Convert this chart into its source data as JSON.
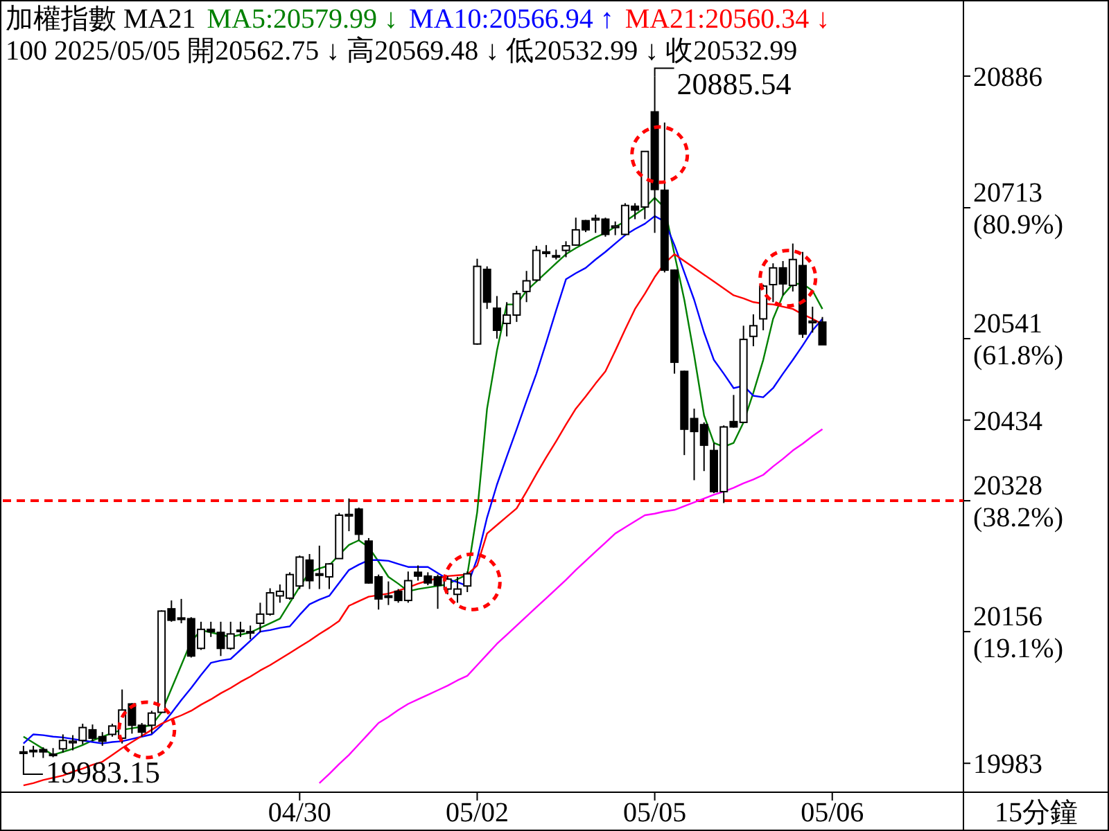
{
  "chart_data": {
    "type": "candlestick",
    "title": "加權指數 MA21",
    "subtitle": "100 2025/05/05 開20562.75 ↓ 高20569.48 ↓ 低20532.99 ↓ 收20532.99",
    "legend": "top",
    "xlabel": "15分鐘",
    "categories": [
      null,
      null,
      null,
      null,
      null,
      null,
      null,
      null,
      null,
      null,
      null,
      null,
      null,
      null,
      null,
      null,
      null,
      null,
      null,
      null,
      null,
      null,
      null,
      null,
      null,
      null,
      null,
      null,
      "04/30",
      null,
      null,
      null,
      null,
      null,
      null,
      null,
      null,
      null,
      null,
      null,
      null,
      null,
      null,
      null,
      null,
      null,
      "05/02",
      null,
      null,
      null,
      null,
      null,
      null,
      null,
      null,
      null,
      null,
      null,
      null,
      null,
      null,
      null,
      null,
      null,
      "05/05",
      null,
      null,
      null,
      null,
      null,
      null,
      null,
      null,
      null,
      null,
      null,
      null,
      null,
      null,
      null,
      null,
      null,
      "05/06"
    ],
    "ohlc": [
      [
        19998,
        20006,
        19983.15,
        19996
      ],
      [
        20000,
        20006,
        19991,
        19999
      ],
      [
        20001,
        20004,
        19990,
        19998
      ],
      [
        19995,
        20003,
        19991,
        19994
      ],
      [
        20002,
        20021,
        19997,
        20013
      ],
      [
        20010,
        20020,
        20000,
        20012
      ],
      [
        20013,
        20035,
        20008,
        20030
      ],
      [
        20027,
        20034,
        20012,
        20016
      ],
      [
        20018,
        20024,
        20006,
        20012
      ],
      [
        20021,
        20035,
        20018,
        20032
      ],
      [
        20016,
        20080,
        20009,
        20053
      ],
      [
        20061,
        20062,
        20022,
        20033
      ],
      [
        20033,
        20036,
        20018,
        20024
      ],
      [
        20033,
        20052,
        20022,
        20049
      ],
      [
        20050,
        20184,
        20049,
        20183
      ],
      [
        20186,
        20197,
        20169,
        20171
      ],
      [
        20174,
        20199,
        20167,
        20172
      ],
      [
        20173,
        20175,
        20122,
        20124
      ],
      [
        20134,
        20169,
        20132,
        20159
      ],
      [
        20159,
        20169,
        20149,
        20156
      ],
      [
        20155,
        20169,
        20124,
        20134
      ],
      [
        20134,
        20169,
        20132,
        20153
      ],
      [
        20158,
        20169,
        20149,
        20157
      ],
      [
        20155,
        20164,
        20146,
        20156
      ],
      [
        20167,
        20194,
        20155,
        20179
      ],
      [
        20179,
        20213,
        20177,
        20207
      ],
      [
        20203,
        20218,
        20194,
        20209
      ],
      [
        20200,
        20234,
        20198,
        20231
      ],
      [
        20216,
        20256,
        20212,
        20254
      ],
      [
        20250,
        20258,
        20212,
        20223
      ],
      [
        20232,
        20269,
        20212,
        20230
      ],
      [
        20228,
        20246,
        20212,
        20245
      ],
      [
        20252,
        20312,
        20252,
        20309
      ],
      [
        20308,
        20331,
        20288,
        20310
      ],
      [
        20317,
        20319,
        20276,
        20284
      ],
      [
        20275,
        20279,
        20219,
        20220
      ],
      [
        20228,
        20231,
        20185,
        20199
      ],
      [
        20203,
        20222,
        20191,
        20201
      ],
      [
        20209,
        20212,
        20194,
        20197
      ],
      [
        20197,
        20235,
        20194,
        20223
      ],
      [
        20234,
        20243,
        20223,
        20229
      ],
      [
        20229,
        20234,
        20217,
        20220
      ],
      [
        20228,
        20231,
        20186,
        20217
      ],
      [
        20212,
        20229,
        20205,
        20225
      ],
      [
        20205,
        20228,
        20194,
        20212
      ],
      [
        20216,
        20235,
        20208,
        20232
      ],
      [
        20534,
        20646,
        20533,
        20636
      ],
      [
        20632,
        20636,
        20580,
        20589
      ],
      [
        20581,
        20597,
        20541,
        20552
      ],
      [
        20561,
        20589,
        20544,
        20572
      ],
      [
        20572,
        20604,
        20563,
        20600
      ],
      [
        20603,
        20630,
        20589,
        20617
      ],
      [
        20618,
        20663,
        20616,
        20657
      ],
      [
        20655,
        20664,
        20648,
        20653
      ],
      [
        20650,
        20658,
        20645,
        20649
      ],
      [
        20657,
        20669,
        20648,
        20663
      ],
      [
        20664,
        20700,
        20663,
        20684
      ],
      [
        20696,
        20697,
        20681,
        20684
      ],
      [
        20697,
        20704,
        20680,
        20699
      ],
      [
        20698,
        20700,
        20675,
        20678
      ],
      [
        20687,
        20695,
        20677,
        20689
      ],
      [
        20678,
        20719,
        20677,
        20716
      ],
      [
        20715,
        20719,
        20698,
        20710
      ],
      [
        20714,
        20787,
        20698,
        20787
      ],
      [
        20839,
        20885.54,
        20680,
        20737
      ],
      [
        20736,
        20825,
        20628,
        20631
      ],
      [
        20631,
        20632,
        20495,
        20510
      ],
      [
        20498,
        20499,
        20388,
        20422
      ],
      [
        20436,
        20449,
        20355,
        20419
      ],
      [
        20428,
        20431,
        20367,
        20401
      ],
      [
        20394,
        20404,
        20338,
        20340
      ],
      [
        20340,
        20427,
        20325,
        20425
      ],
      [
        20432,
        20467,
        20424,
        20425
      ],
      [
        20431,
        20558,
        20430,
        20540
      ],
      [
        20544,
        20573,
        20531,
        20558
      ],
      [
        20567,
        20612,
        20552,
        20610
      ],
      [
        20612,
        20640,
        20589,
        20634
      ],
      [
        20634,
        20643,
        20598,
        20613
      ],
      [
        20611,
        20666,
        20603,
        20645
      ],
      [
        20637,
        20655,
        20542,
        20547
      ],
      [
        20562,
        20583,
        20549,
        20564
      ],
      [
        20562.75,
        20569.48,
        20532.99,
        20532.99
      ],
      null
    ],
    "series": [
      {
        "type": "line",
        "name": "MA5:20579.99 ↓",
        "color": "#008000",
        "values": [
          20018,
          20010,
          20002,
          19994,
          19998,
          20002,
          20007,
          20013,
          20018,
          20023,
          20027,
          20029,
          20031,
          20033,
          20050,
          20081,
          20112,
          20143,
          20158,
          20155,
          20152,
          20149,
          20152,
          20155,
          20161,
          20167,
          20173,
          20194,
          20215,
          20234,
          20239,
          20243,
          20257,
          20270,
          20276,
          20267,
          20248,
          20228,
          20219,
          20209,
          20212,
          20214,
          20216,
          20218,
          20225,
          20231,
          20313,
          20449,
          20525,
          20586,
          20586,
          20604,
          20616,
          20628,
          20640,
          20652,
          20660,
          20667,
          20674,
          20680,
          20688,
          20695,
          20704,
          20713,
          20726,
          20713,
          20652,
          20592,
          20519,
          20440,
          20404,
          20399,
          20404,
          20431,
          20470,
          20513,
          20567,
          20598,
          20613,
          20613,
          20604,
          20580,
          null
        ]
      },
      {
        "type": "line",
        "name": "MA10:20566.94 ↑",
        "color": "#0000ff",
        "values": [
          20009,
          20021,
          20020,
          20018,
          20017,
          20015,
          20013,
          20011,
          20009,
          20011,
          20012,
          20015,
          20018,
          20021,
          20033,
          20049,
          20066,
          20082,
          20099,
          20115,
          20118,
          20120,
          20132,
          20144,
          20156,
          20158,
          20161,
          20163,
          20178,
          20192,
          20198,
          20203,
          20220,
          20237,
          20244,
          20250,
          20250,
          20249,
          20245,
          20241,
          20241,
          20241,
          20233,
          20225,
          20221,
          20216,
          20252,
          20306,
          20349,
          20386,
          20422,
          20459,
          20495,
          20536,
          20578,
          20619,
          20627,
          20634,
          20645,
          20655,
          20666,
          20677,
          20685,
          20692,
          20702,
          20695,
          20664,
          20628,
          20592,
          20549,
          20513,
          20495,
          20476,
          20479,
          20466,
          20464,
          20476,
          20495,
          20513,
          20532,
          20552,
          20567,
          null
        ]
      },
      {
        "type": "line",
        "name": "MA21:20560.34 ↓",
        "color": "#ff0000",
        "values": [
          19954,
          19957,
          19961,
          19964,
          19967,
          19972,
          19976,
          19981,
          19985,
          19994,
          20003,
          20011,
          20019,
          20027,
          20035,
          20041,
          20046,
          20052,
          20060,
          20067,
          20075,
          20082,
          20090,
          20097,
          20105,
          20112,
          20120,
          20128,
          20136,
          20144,
          20153,
          20161,
          20170,
          20190,
          20196,
          20202,
          20204,
          20206,
          20210,
          20214,
          20219,
          20223,
          20226,
          20229,
          20230,
          20231,
          20243,
          20285,
          20296,
          20307,
          20318,
          20340,
          20363,
          20385,
          20406,
          20428,
          20449,
          20465,
          20482,
          20498,
          20525,
          20553,
          20580,
          20600,
          20622,
          20640,
          20652,
          20643,
          20634,
          20625,
          20616,
          20607,
          20598,
          20594,
          20589,
          20587,
          20586,
          20583,
          20580,
          20573,
          20567,
          20560,
          null
        ]
      },
      {
        "type": "line",
        "color": "#ff00ff",
        "values": [
          null,
          null,
          null,
          null,
          null,
          null,
          null,
          null,
          null,
          null,
          null,
          null,
          null,
          null,
          null,
          null,
          null,
          null,
          null,
          null,
          null,
          null,
          null,
          null,
          null,
          null,
          null,
          null,
          null,
          null,
          19957,
          19969,
          19982,
          19994,
          20008,
          20022,
          20036,
          20044,
          20053,
          20061,
          20067,
          20073,
          20079,
          20085,
          20092,
          20098,
          20112,
          20126,
          20140,
          20152,
          20164,
          20176,
          20188,
          20200,
          20212,
          20224,
          20237,
          20249,
          20261,
          20273,
          20285,
          20293,
          20301,
          20309,
          20311,
          20314,
          20316,
          20321,
          20326,
          20331,
          20336,
          20340,
          20345,
          20351,
          20356,
          20362,
          20373,
          20383,
          20394,
          20403,
          20413,
          20422,
          null
        ]
      }
    ],
    "ylim": [
      19945,
      20986
    ],
    "yticks": [
      20886,
      {
        "value": 20713,
        "label": "20713 (80.9%)"
      },
      {
        "value": 20541,
        "label": "20541 (61.8%)"
      },
      20434,
      {
        "value": 20328,
        "label": "20328 (38.2%)"
      },
      {
        "value": 20156,
        "label": "20156 (19.1%)"
      },
      19983
    ],
    "ref_lines": [
      {
        "axis": "y",
        "value": 20328,
        "color": "#ff0000",
        "line_style": "dashed"
      }
    ],
    "annotations": [
      {
        "text": "20885.54",
        "x": "05/05",
        "y": 20885.54
      },
      {
        "text": "19983.15",
        "y": 19983.15
      }
    ]
  }
}
